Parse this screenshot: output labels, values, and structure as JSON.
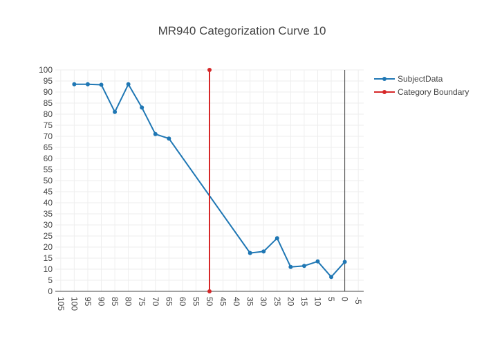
{
  "chart_data": {
    "type": "line",
    "title": "MR940 Categorization Curve 10",
    "xlabel": "",
    "ylabel": "",
    "x_reversed": true,
    "xlim": [
      107,
      -7
    ],
    "ylim": [
      0,
      100
    ],
    "x_ticks": [
      105,
      100,
      95,
      90,
      85,
      80,
      75,
      70,
      65,
      60,
      55,
      50,
      45,
      40,
      35,
      30,
      25,
      20,
      15,
      10,
      5,
      0,
      -5
    ],
    "y_ticks": [
      0,
      5,
      10,
      15,
      20,
      25,
      30,
      35,
      40,
      45,
      50,
      55,
      60,
      65,
      70,
      75,
      80,
      85,
      90,
      95,
      100
    ],
    "grid": true,
    "legend_position": "top-right",
    "series": [
      {
        "name": "SubjectData",
        "color": "#1f77b4",
        "x": [
          100,
          95,
          90,
          85,
          80,
          75,
          70,
          65,
          35,
          30,
          25,
          20,
          15,
          10,
          5,
          0
        ],
        "y": [
          93.5,
          93.5,
          93.3,
          81,
          93.5,
          83,
          71,
          69,
          17.3,
          18,
          24,
          11,
          11.5,
          13.5,
          6.5,
          13.3
        ]
      },
      {
        "name": "Category Boundary",
        "color": "#d62728",
        "x": [
          50,
          50
        ],
        "y": [
          0,
          100
        ]
      }
    ]
  }
}
